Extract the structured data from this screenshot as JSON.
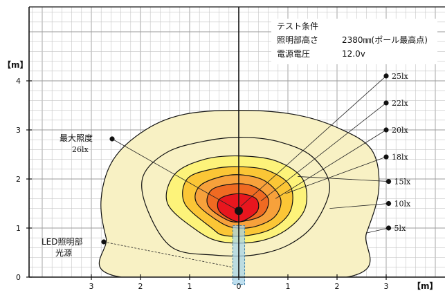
{
  "chart_data": {
    "type": "contour",
    "x_axis": {
      "unit_label": "【m】",
      "ticks": [
        {
          "value": -3,
          "label": "3"
        },
        {
          "value": -2,
          "label": "2"
        },
        {
          "value": -1,
          "label": "1"
        },
        {
          "value": 0,
          "label": "0"
        },
        {
          "value": 1,
          "label": "1"
        },
        {
          "value": 2,
          "label": "2"
        },
        {
          "value": 3,
          "label": "3"
        }
      ],
      "range": [
        -4.2,
        4.0
      ]
    },
    "y_axis": {
      "unit_label": "【m】",
      "ticks": [
        {
          "value": 0,
          "label": "0"
        },
        {
          "value": 1,
          "label": "1"
        },
        {
          "value": 2,
          "label": "2"
        },
        {
          "value": 3,
          "label": "3"
        },
        {
          "value": 4,
          "label": "4"
        }
      ],
      "range": [
        -0.15,
        5.5
      ]
    },
    "grid": true,
    "grid_step_m": 0.2,
    "test_conditions": {
      "title": "テスト条件",
      "rows": [
        {
          "label": "照明部高さ",
          "value": "2380㎜(ポール最高点)"
        },
        {
          "label": "電源電圧",
          "value": "12.0v"
        }
      ]
    },
    "contours": [
      {
        "level_lux": 5,
        "label": "5lx",
        "fill": "#f8f1c4",
        "stroke": "#111111",
        "points": [
          [
            -2.4,
            0
          ],
          [
            -2.7,
            0.8
          ],
          [
            -2.8,
            1.6
          ],
          [
            -2.55,
            2.4
          ],
          [
            -1.9,
            3.0
          ],
          [
            -1.1,
            3.32
          ],
          [
            0,
            3.4
          ],
          [
            1.1,
            3.32
          ],
          [
            2.0,
            3.05
          ],
          [
            2.7,
            2.6
          ],
          [
            2.85,
            1.8
          ],
          [
            2.6,
            0.9
          ],
          [
            2.2,
            0
          ]
        ]
      },
      {
        "level_lux": 10,
        "label": "10lx",
        "fill": "#f8f1c4",
        "stroke": "#111111",
        "points": [
          [
            -1.35,
            0.6
          ],
          [
            -1.85,
            1.35
          ],
          [
            -1.95,
            2.05
          ],
          [
            -1.45,
            2.55
          ],
          [
            -0.65,
            2.78
          ],
          [
            0.1,
            2.85
          ],
          [
            0.85,
            2.75
          ],
          [
            1.5,
            2.45
          ],
          [
            1.85,
            1.85
          ],
          [
            1.55,
            1.1
          ],
          [
            1.0,
            0.65
          ],
          [
            0.3,
            0.45
          ],
          [
            -0.5,
            0.45
          ]
        ]
      },
      {
        "level_lux": 15,
        "label": "15lx",
        "fill": "#fdf37a",
        "stroke": "#111111",
        "points": [
          [
            -0.85,
            0.95
          ],
          [
            -1.45,
            1.5
          ],
          [
            -1.3,
            2.1
          ],
          [
            -0.7,
            2.4
          ],
          [
            0,
            2.47
          ],
          [
            0.75,
            2.37
          ],
          [
            1.3,
            2.0
          ],
          [
            1.35,
            1.4
          ],
          [
            0.95,
            0.95
          ],
          [
            0.35,
            0.72
          ],
          [
            -0.35,
            0.72
          ]
        ]
      },
      {
        "level_lux": 18,
        "label": "18lx",
        "fill": "#fbc636",
        "stroke": "#111111",
        "points": [
          [
            -0.55,
            1.0
          ],
          [
            -1.1,
            1.5
          ],
          [
            -1.05,
            2.0
          ],
          [
            -0.55,
            2.2
          ],
          [
            0,
            2.25
          ],
          [
            0.6,
            2.17
          ],
          [
            1.05,
            1.85
          ],
          [
            1.05,
            1.35
          ],
          [
            0.7,
            1.0
          ],
          [
            0.2,
            0.85
          ],
          [
            -0.3,
            0.85
          ]
        ]
      },
      {
        "level_lux": 20,
        "label": "20lx",
        "fill": "#f7a13b",
        "stroke": "#111111",
        "points": [
          [
            -0.35,
            1.1
          ],
          [
            -0.85,
            1.5
          ],
          [
            -0.8,
            1.85
          ],
          [
            -0.35,
            2.05
          ],
          [
            0.1,
            2.08
          ],
          [
            0.55,
            1.95
          ],
          [
            0.85,
            1.6
          ],
          [
            0.75,
            1.25
          ],
          [
            0.4,
            1.05
          ],
          [
            0,
            1.0
          ]
        ]
      },
      {
        "level_lux": 22,
        "label": "22lx",
        "fill": "#ef6a22",
        "stroke": "#111111",
        "points": [
          [
            -0.2,
            1.15
          ],
          [
            -0.62,
            1.45
          ],
          [
            -0.55,
            1.78
          ],
          [
            -0.1,
            1.9
          ],
          [
            0.3,
            1.85
          ],
          [
            0.6,
            1.6
          ],
          [
            0.5,
            1.28
          ],
          [
            0.15,
            1.15
          ]
        ]
      },
      {
        "level_lux": 25,
        "label": "25lx",
        "fill": "#e8161e",
        "stroke": "#111111",
        "points": [
          [
            -0.1,
            1.15
          ],
          [
            -0.4,
            1.35
          ],
          [
            -0.38,
            1.6
          ],
          [
            0,
            1.7
          ],
          [
            0.35,
            1.6
          ],
          [
            0.38,
            1.35
          ],
          [
            0.1,
            1.15
          ]
        ]
      }
    ],
    "max_point": {
      "x": 0,
      "y": 1.35,
      "label_line1": "最大照度",
      "label_line2": "26lx",
      "value_lux": 26
    },
    "light_source": {
      "label_line1": "LED照明部",
      "label_line2": "光源",
      "x_range": [
        -0.12,
        0.12
      ],
      "y_range": [
        -0.15,
        1.05
      ],
      "color": "#a8d4ea"
    },
    "legend_callouts": [
      {
        "label": "25lx",
        "dot": [
          3.0,
          4.1
        ],
        "target": [
          0.05,
          1.45
        ]
      },
      {
        "label": "22lx",
        "dot": [
          3.0,
          3.55
        ],
        "target": [
          0.45,
          1.55
        ]
      },
      {
        "label": "20lx",
        "dot": [
          3.0,
          3.0
        ],
        "target": [
          0.75,
          1.6
        ]
      },
      {
        "label": "18lx",
        "dot": [
          3.0,
          2.45
        ],
        "target": [
          0.95,
          1.7
        ]
      },
      {
        "label": "15lx",
        "dot": [
          3.05,
          1.95
        ],
        "target": [
          1.2,
          2.05
        ]
      },
      {
        "label": "10lx",
        "dot": [
          3.05,
          1.5
        ],
        "target": [
          1.85,
          1.4
        ]
      },
      {
        "label": "5lx",
        "dot": [
          3.05,
          1.0
        ],
        "target": [
          2.6,
          0.9
        ]
      }
    ]
  }
}
